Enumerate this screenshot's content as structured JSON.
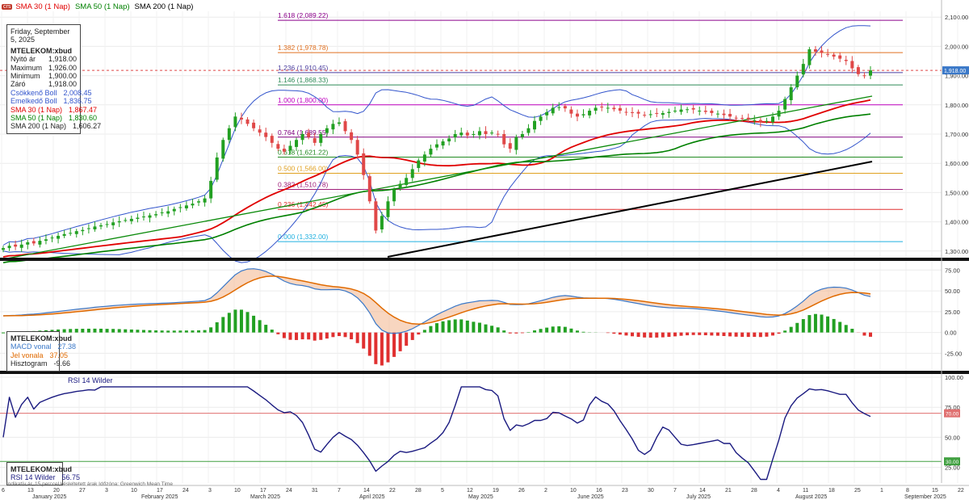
{
  "top_legend": {
    "badge": "crs",
    "items": [
      {
        "label": "SMA 30 (1 Nap)",
        "color": "#e00000"
      },
      {
        "label": "SMA 50 (1 Nap)",
        "color": "#008000"
      },
      {
        "label": "SMA 200 (1 Nap)",
        "color": "#000000"
      }
    ]
  },
  "info_box": {
    "date": "Friday, September 5, 2025",
    "symbol": "MTELEKOM:xbud",
    "rows": [
      {
        "label": "Nyitó ár",
        "value": "1,918.00",
        "color": "#222222"
      },
      {
        "label": "Maximum",
        "value": "1,926.00",
        "color": "#222222"
      },
      {
        "label": "Minimum",
        "value": "1,900.00",
        "color": "#222222"
      },
      {
        "label": "Záró",
        "value": "1,918.00",
        "color": "#222222"
      },
      {
        "label": "Csökkenő Boll",
        "value": "2,008.45",
        "color": "#3355cc"
      },
      {
        "label": "Emelkedő Boll",
        "value": "1,836.75",
        "color": "#3355cc"
      },
      {
        "label": "SMA 30 (1 Nap)",
        "value": "1,867.47",
        "color": "#e00000"
      },
      {
        "label": "SMA 50 (1 Nap)",
        "value": "1,830.60",
        "color": "#008000"
      },
      {
        "label": "SMA 200 (1 Nap)",
        "value": "1,606.27",
        "color": "#222222"
      }
    ]
  },
  "macd_box": {
    "symbol": "MTELEKOM:xbud",
    "rows": [
      {
        "label": "MACD vonal",
        "value": "27.38",
        "color": "#3a78c8"
      },
      {
        "label": "Jel vonala",
        "value": "37.05",
        "color": "#e06a00"
      },
      {
        "label": "Hisztogram",
        "value": "-9.66",
        "color": "#222222"
      }
    ]
  },
  "rsi_title": "RSI 14 Wilder",
  "rsi_box": {
    "symbol": "MTELEKOM:xbud",
    "rows": [
      {
        "label": "RSI 14 Wilder",
        "value": "56.75",
        "color": "#1a1a80"
      }
    ]
  },
  "footer_note": "Indikatív ár, 15 perccel késleltetett árak   Időzóna: Greenwich Mean Time",
  "last_price_tag": "1,918.00",
  "chart_data": [
    {
      "type": "candlestick",
      "ylim": [
        1280,
        2120
      ],
      "y_ticks": [
        "1,300.00",
        "1,400.00",
        "1,500.00",
        "1,600.00",
        "1,700.00",
        "1,800.00",
        "1,900.00",
        "2,000.00",
        "2,100.00"
      ],
      "y_tick_values": [
        1300,
        1400,
        1500,
        1600,
        1700,
        1800,
        1900,
        2000,
        2100
      ],
      "fibonacci": [
        {
          "label": "1.618 (2,089.22)",
          "value": 2089.22,
          "color": "#8b008b"
        },
        {
          "label": "1.382 (1,978.78)",
          "value": 1978.78,
          "color": "#e07020"
        },
        {
          "label": "1.236 (1,910.45)",
          "value": 1910.45,
          "color": "#4b3fa0"
        },
        {
          "label": "1.146 (1,868.33)",
          "value": 1868.33,
          "color": "#2e8b57"
        },
        {
          "label": "1.000 (1,800.00)",
          "value": 1800,
          "color": "#c000c0"
        },
        {
          "label": "0.764 (1,689.55)",
          "value": 1689.55,
          "color": "#800080"
        },
        {
          "label": "0.618 (1,621.22)",
          "value": 1621.22,
          "color": "#228b22"
        },
        {
          "label": "0.500 (1,566.00)",
          "value": 1566,
          "color": "#e0a020"
        },
        {
          "label": "0.382 (1,510.78)",
          "value": 1510.78,
          "color": "#a0207a"
        },
        {
          "label": "0.236 (1,442.45)",
          "value": 1442.45,
          "color": "#e03030"
        },
        {
          "label": "0.000 (1,332.00)",
          "value": 1332,
          "color": "#20b0e0"
        }
      ],
      "close": [
        1310,
        1318,
        1315,
        1322,
        1330,
        1326,
        1335,
        1340,
        1346,
        1352,
        1358,
        1362,
        1368,
        1372,
        1378,
        1384,
        1388,
        1392,
        1398,
        1402,
        1406,
        1410,
        1414,
        1418,
        1422,
        1426,
        1432,
        1436,
        1444,
        1450,
        1456,
        1462,
        1470,
        1480,
        1540,
        1620,
        1680,
        1720,
        1760,
        1750,
        1735,
        1720,
        1705,
        1690,
        1670,
        1650,
        1640,
        1660,
        1680,
        1700,
        1690,
        1670,
        1700,
        1720,
        1735,
        1740,
        1710,
        1680,
        1630,
        1560,
        1470,
        1370,
        1420,
        1470,
        1510,
        1530,
        1550,
        1580,
        1610,
        1630,
        1650,
        1665,
        1675,
        1685,
        1700,
        1705,
        1695,
        1700,
        1710,
        1700,
        1705,
        1700,
        1665,
        1650,
        1690,
        1700,
        1720,
        1745,
        1760,
        1775,
        1790,
        1792,
        1788,
        1770,
        1760,
        1768,
        1780,
        1790,
        1792,
        1790,
        1785,
        1780,
        1775,
        1772,
        1770,
        1765,
        1768,
        1770,
        1772,
        1776,
        1780,
        1784,
        1785,
        1784,
        1780,
        1776,
        1772,
        1770,
        1765,
        1760,
        1755,
        1752,
        1750,
        1748,
        1740,
        1745,
        1760,
        1780,
        1820,
        1860,
        1900,
        1940,
        1990,
        1982,
        1978,
        1972,
        1965,
        1958,
        1950,
        1925,
        1905,
        1900,
        1918
      ]
    },
    {
      "type": "macd",
      "ylim": [
        -45,
        85
      ],
      "y_ticks": [
        "75.00",
        "50.00",
        "25.00",
        "0.00",
        "-25.00"
      ],
      "y_tick_values": [
        75,
        50,
        25,
        0,
        -25
      ]
    },
    {
      "type": "rsi",
      "ylim": [
        12,
        102
      ],
      "y_ticks": [
        "100.00",
        "75.00",
        "50.00",
        "25.00"
      ],
      "y_tick_values": [
        100,
        75,
        50,
        25
      ],
      "levels": [
        "70.00",
        "30.00"
      ],
      "level_values": [
        70,
        30
      ],
      "level_colors": [
        "#e07070",
        "#40a040"
      ]
    },
    {
      "type": "x_axis",
      "day_ticks": [
        "6",
        "13",
        "20",
        "27",
        "3",
        "10",
        "17",
        "24",
        "3",
        "10",
        "17",
        "24",
        "31",
        "7",
        "14",
        "22",
        "28",
        "5",
        "12",
        "19",
        "26",
        "2",
        "10",
        "16",
        "23",
        "30",
        "7",
        "14",
        "21",
        "28",
        "4",
        "11",
        "18",
        "25",
        "1",
        "8",
        "15",
        "22"
      ],
      "months": [
        "January 2025",
        "February 2025",
        "March 2025",
        "April 2025",
        "May 2025",
        "June 2025",
        "July 2025",
        "August 2025",
        "September 2025"
      ]
    }
  ]
}
